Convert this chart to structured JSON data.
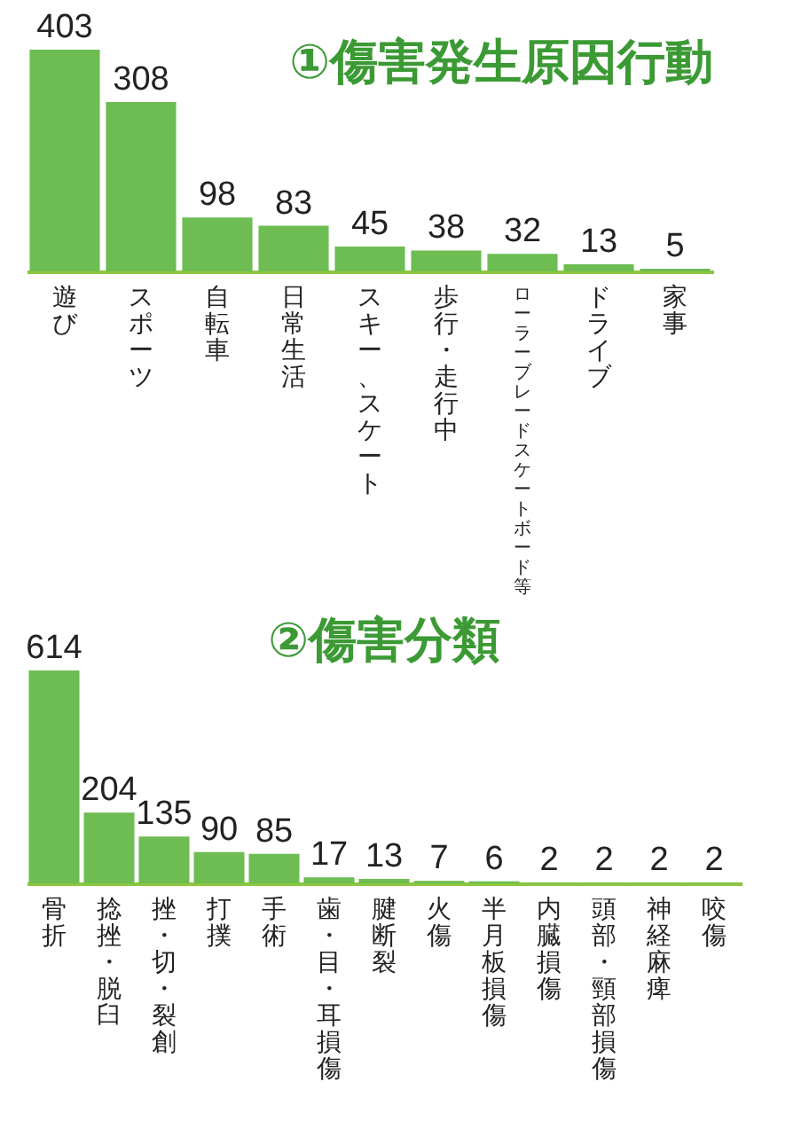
{
  "chart_data": [
    {
      "type": "bar",
      "title": "①傷害発生原因行動",
      "categories": [
        "遊び",
        "スポーツ",
        "自転車",
        "日常生活",
        "スキー、スケート",
        "歩行・走行中",
        "ローラーブレードスケートボード等",
        "ドライブ",
        "家事"
      ],
      "values": [
        403,
        308,
        98,
        83,
        45,
        38,
        32,
        13,
        5
      ],
      "color": "#6dbd52",
      "data_labels": true
    },
    {
      "type": "bar",
      "title": "②傷害分類",
      "categories": [
        "骨折",
        "捻挫・脱臼",
        "挫・切・裂創",
        "打撲",
        "手術",
        "歯・目・耳損傷",
        "腱断裂",
        "火傷",
        "半月板損傷",
        "内臓損傷",
        "頭部・頸部損傷",
        "神経麻痺",
        "咬傷"
      ],
      "values": [
        614,
        204,
        135,
        90,
        85,
        17,
        13,
        7,
        6,
        2,
        2,
        2,
        2
      ],
      "color": "#6dbd52",
      "data_labels": true
    }
  ]
}
